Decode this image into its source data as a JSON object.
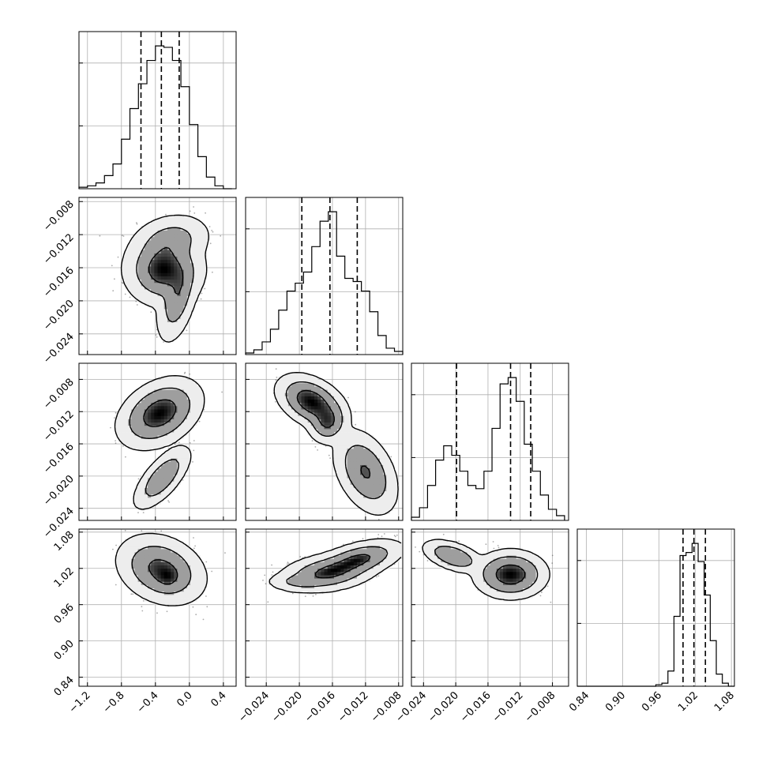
{
  "chart_data": {
    "type": "corner",
    "grid": true,
    "parameters": [
      {
        "index": 0,
        "range": [
          -1.3,
          0.55
        ],
        "ticks": [
          -1.2,
          -0.8,
          -0.4,
          0.0,
          0.4
        ],
        "tick_labels": [
          "−1.2",
          "−0.8",
          "−0.4",
          "0.0",
          "0.4"
        ]
      },
      {
        "index": 1,
        "range": [
          -0.0265,
          -0.0075
        ],
        "ticks": [
          -0.024,
          -0.02,
          -0.016,
          -0.012,
          -0.008
        ],
        "tick_labels": [
          "−0.024",
          "−0.020",
          "−0.016",
          "−0.012",
          "−0.008"
        ]
      },
      {
        "index": 2,
        "range": [
          -0.0255,
          -0.006
        ],
        "ticks": [
          -0.024,
          -0.02,
          -0.016,
          -0.012,
          -0.008
        ],
        "tick_labels": [
          "−0.024",
          "−0.020",
          "−0.016",
          "−0.012",
          "−0.008"
        ]
      },
      {
        "index": 3,
        "range": [
          0.825,
          1.085
        ],
        "ticks": [
          0.84,
          0.9,
          0.96,
          1.02,
          1.08
        ],
        "tick_labels": [
          "0.84",
          "0.90",
          "0.96",
          "1.02",
          "1.08"
        ]
      }
    ],
    "histograms": [
      {
        "param": 0,
        "quantiles": [
          -0.57,
          -0.33,
          -0.12
        ],
        "edges": [
          -1.3,
          -1.2,
          -1.1,
          -1.0,
          -0.9,
          -0.8,
          -0.7,
          -0.6,
          -0.5,
          -0.4,
          -0.3,
          -0.2,
          -0.1,
          0.0,
          0.1,
          0.2,
          0.3,
          0.4,
          0.5
        ],
        "counts": [
          1,
          2,
          4,
          9,
          17,
          34,
          55,
          72,
          88,
          98,
          97,
          88,
          70,
          44,
          22,
          8,
          2,
          0
        ]
      },
      {
        "param": 1,
        "quantiles": [
          -0.0197,
          -0.0163,
          -0.013
        ],
        "edges": [
          -0.0265,
          -0.0255,
          -0.0245,
          -0.0235,
          -0.0225,
          -0.0215,
          -0.0205,
          -0.0195,
          -0.0185,
          -0.0175,
          -0.0165,
          -0.0155,
          -0.0145,
          -0.0135,
          -0.0125,
          -0.0115,
          -0.0105,
          -0.0095,
          -0.0085,
          -0.0075
        ],
        "counts": [
          1,
          3,
          8,
          16,
          28,
          40,
          45,
          52,
          68,
          84,
          90,
          62,
          48,
          46,
          40,
          27,
          12,
          4,
          2
        ]
      },
      {
        "param": 2,
        "quantiles": [
          -0.0199,
          -0.0132,
          -0.0107
        ],
        "edges": [
          -0.0255,
          -0.0245,
          -0.0235,
          -0.0225,
          -0.0215,
          -0.0205,
          -0.0195,
          -0.0185,
          -0.0175,
          -0.0165,
          -0.0155,
          -0.0145,
          -0.0135,
          -0.0125,
          -0.0115,
          -0.0105,
          -0.0095,
          -0.0085,
          -0.0075,
          -0.0065
        ],
        "counts": [
          2,
          8,
          22,
          38,
          47,
          41,
          31,
          22,
          20,
          31,
          58,
          86,
          90,
          75,
          48,
          31,
          16,
          7,
          3
        ]
      },
      {
        "param": 3,
        "quantiles": [
          1.0,
          1.018,
          1.037
        ],
        "edges": [
          0.825,
          0.835,
          0.845,
          0.855,
          0.865,
          0.875,
          0.885,
          0.895,
          0.905,
          0.915,
          0.925,
          0.935,
          0.945,
          0.955,
          0.965,
          0.975,
          0.985,
          0.995,
          1.005,
          1.015,
          1.025,
          1.035,
          1.045,
          1.055,
          1.065,
          1.075,
          1.085
        ],
        "counts": [
          0,
          0,
          0,
          0,
          0,
          0,
          0,
          0,
          0,
          0,
          0,
          0,
          0,
          1,
          2,
          10,
          46,
          86,
          88,
          94,
          82,
          60,
          30,
          8,
          2,
          0
        ]
      }
    ],
    "joint": [
      {
        "x_param": 0,
        "y_param": 1,
        "levels": [
          0.39,
          0.86,
          0.99
        ],
        "components": [
          {
            "w": 0.6,
            "mx": -0.3,
            "my": -0.0162,
            "sx": 0.17,
            "sy": 0.0016,
            "rho": 0.0
          },
          {
            "w": 0.25,
            "mx": -0.22,
            "my": -0.0128,
            "sx": 0.17,
            "sy": 0.0012,
            "rho": 0.2
          },
          {
            "w": 0.3,
            "mx": -0.14,
            "my": -0.0196,
            "sx": 0.09,
            "sy": 0.002,
            "rho": 0.45
          }
        ]
      },
      {
        "x_param": 0,
        "y_param": 2,
        "levels": [
          0.39,
          0.86,
          0.99
        ],
        "components": [
          {
            "w": 0.7,
            "mx": -0.35,
            "my": -0.0122,
            "sx": 0.17,
            "sy": 0.0015,
            "rho": 0.35
          },
          {
            "w": 0.3,
            "mx": -0.32,
            "my": -0.0202,
            "sx": 0.12,
            "sy": 0.0014,
            "rho": 0.7
          }
        ]
      },
      {
        "x_param": 0,
        "y_param": 3,
        "levels": [
          0.39,
          0.86,
          0.99
        ],
        "components": [
          {
            "w": 0.7,
            "mx": -0.33,
            "my": 1.018,
            "sx": 0.18,
            "sy": 0.02,
            "rho": -0.25
          },
          {
            "w": 0.3,
            "mx": -0.25,
            "my": 1.005,
            "sx": 0.08,
            "sy": 0.01,
            "rho": 0.0
          }
        ]
      },
      {
        "x_param": 1,
        "y_param": 2,
        "levels": [
          0.39,
          0.86,
          0.99
        ],
        "components": [
          {
            "w": 0.55,
            "mx": -0.0185,
            "my": -0.0108,
            "sx": 0.0015,
            "sy": 0.0012,
            "rho": -0.4
          },
          {
            "w": 0.35,
            "mx": -0.0166,
            "my": -0.0132,
            "sx": 0.0009,
            "sy": 0.001,
            "rho": 0.0
          },
          {
            "w": 0.3,
            "mx": -0.012,
            "my": -0.0195,
            "sx": 0.0014,
            "sy": 0.0019,
            "rho": -0.4
          }
        ]
      },
      {
        "x_param": 1,
        "y_param": 3,
        "levels": [
          0.39,
          0.86,
          0.99
        ],
        "components": [
          {
            "w": 0.5,
            "mx": -0.0165,
            "my": 1.013,
            "sx": 0.0022,
            "sy": 0.012,
            "rho": 0.3
          },
          {
            "w": 0.5,
            "mx": -0.0128,
            "my": 1.035,
            "sx": 0.002,
            "sy": 0.012,
            "rho": 0.5
          },
          {
            "w": 0.15,
            "mx": -0.02,
            "my": 0.998,
            "sx": 0.0015,
            "sy": 0.006,
            "rho": 0.0
          }
        ]
      },
      {
        "x_param": 2,
        "y_param": 3,
        "levels": [
          0.39,
          0.86,
          0.99
        ],
        "components": [
          {
            "w": 0.3,
            "mx": -0.0203,
            "my": 1.04,
            "sx": 0.0014,
            "sy": 0.01,
            "rho": -0.5
          },
          {
            "w": 0.7,
            "mx": -0.0132,
            "my": 1.01,
            "sx": 0.0016,
            "sy": 0.014,
            "rho": 0.0
          }
        ]
      }
    ]
  }
}
